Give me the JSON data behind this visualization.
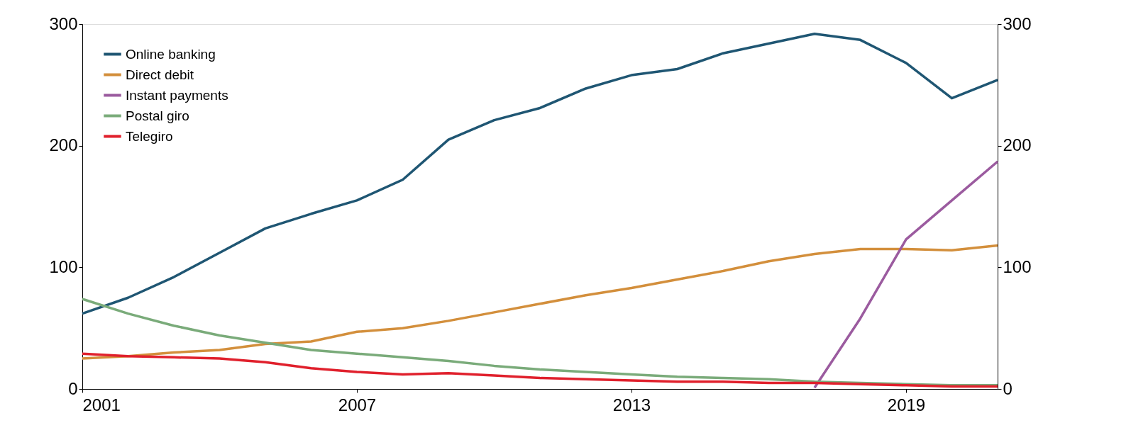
{
  "chart_data": {
    "type": "line",
    "x": [
      2001,
      2002,
      2003,
      2004,
      2005,
      2006,
      2007,
      2008,
      2009,
      2010,
      2011,
      2012,
      2013,
      2014,
      2015,
      2016,
      2017,
      2018,
      2019,
      2020,
      2021
    ],
    "series": [
      {
        "name": "Online banking",
        "color": "#1f5673",
        "values": [
          62,
          75,
          92,
          112,
          132,
          144,
          155,
          172,
          205,
          221,
          231,
          247,
          258,
          263,
          276,
          284,
          292,
          287,
          268,
          239,
          254
        ]
      },
      {
        "name": "Direct debit",
        "color": "#d38f3c",
        "values": [
          25,
          27,
          30,
          32,
          37,
          39,
          47,
          50,
          56,
          63,
          70,
          77,
          83,
          90,
          97,
          105,
          111,
          115,
          115,
          114,
          118
        ]
      },
      {
        "name": "Instant payments",
        "color": "#9b5b9f",
        "values": [
          null,
          null,
          null,
          null,
          null,
          null,
          null,
          null,
          null,
          null,
          null,
          null,
          null,
          null,
          null,
          null,
          1,
          58,
          123,
          155,
          187
        ]
      },
      {
        "name": "Postal giro",
        "color": "#7aab7a",
        "values": [
          74,
          62,
          52,
          44,
          38,
          32,
          29,
          26,
          23,
          19,
          16,
          14,
          12,
          10,
          9,
          8,
          6,
          5,
          4,
          3,
          3
        ]
      },
      {
        "name": "Telegiro",
        "color": "#e0202c",
        "values": [
          29,
          27,
          26,
          25,
          22,
          17,
          14,
          12,
          13,
          11,
          9,
          8,
          7,
          6,
          6,
          5,
          5,
          4,
          3,
          2,
          2
        ]
      }
    ],
    "xlim": [
      2001,
      2021
    ],
    "xticks": [
      2001,
      2007,
      2013,
      2019
    ],
    "ylim": [
      0,
      300
    ],
    "yticks": [
      0,
      100,
      200,
      300
    ],
    "y2lim": [
      0,
      300
    ],
    "y2ticks": [
      0,
      100,
      200,
      300
    ],
    "legend": "top left",
    "grid": false,
    "line_style": "solid"
  }
}
